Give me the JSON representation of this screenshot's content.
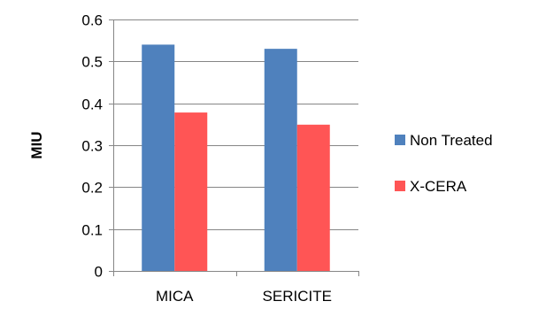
{
  "chart_data": {
    "type": "bar",
    "title": "",
    "xlabel": "",
    "ylabel": "MIU",
    "categories": [
      "MICA",
      "SERICITE"
    ],
    "series": [
      {
        "name": "Non Treated",
        "values": [
          0.54,
          0.53
        ],
        "color": "#4F81BD"
      },
      {
        "name": "X-CERA",
        "values": [
          0.378,
          0.349
        ],
        "color": "#FF5555"
      }
    ],
    "ylim": [
      0,
      0.6
    ],
    "yticks": [
      0,
      0.1,
      0.2,
      0.3,
      0.4,
      0.5,
      0.6
    ],
    "ytick_labels": [
      "0",
      "0.1",
      "0.2",
      "0.3",
      "0.4",
      "0.5",
      "0.6"
    ],
    "grid": true,
    "legend_position": "right"
  }
}
